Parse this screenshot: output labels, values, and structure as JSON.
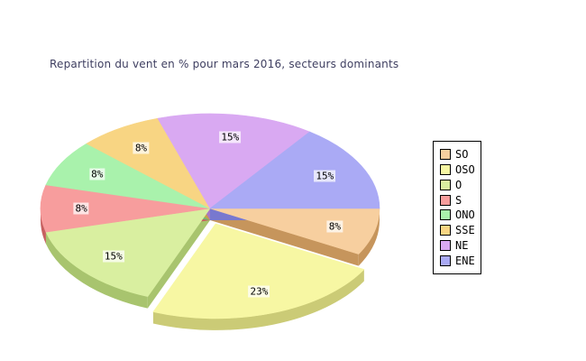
{
  "title": "Repartition du vent en % pour mars 2016, secteurs dominants",
  "chart_data": {
    "type": "pie",
    "style": "3d-exploded",
    "title": "Repartition du vent en % pour mars 2016, secteurs dominants",
    "labels": [
      "SO",
      "OSO",
      "O",
      "S",
      "ONO",
      "SSE",
      "NE",
      "ENE"
    ],
    "values": [
      8,
      23,
      15,
      8,
      8,
      8,
      15,
      15
    ],
    "value_labels": [
      "8%",
      "23%",
      "15%",
      "8%",
      "8%",
      "8%",
      "15%",
      "15%"
    ],
    "colors": [
      "#F7CF9F",
      "#F7F7A3",
      "#D9EFA0",
      "#F79D9D",
      "#A9F2AC",
      "#F8D583",
      "#D9A9F2",
      "#AAAAF5"
    ],
    "side_colors": [
      "#C6955C",
      "#CBCB76",
      "#A8C46E",
      "#C66060",
      "#6FBE75",
      "#C6A14B",
      "#A878C6",
      "#7878CF"
    ],
    "exploded_slice": "OSO",
    "exploded_index": 1,
    "start_angle": 0,
    "direction": "clockwise",
    "legend_position": "right",
    "background_color": "#ffffff",
    "title_color": "#3e3e60"
  },
  "legend": {
    "items": [
      {
        "label": "SO",
        "color": "#F7CF9F"
      },
      {
        "label": "OSO",
        "color": "#F7F7A3"
      },
      {
        "label": "O",
        "color": "#D9EFA0"
      },
      {
        "label": "S",
        "color": "#F79D9D"
      },
      {
        "label": "ONO",
        "color": "#A9F2AC"
      },
      {
        "label": "SSE",
        "color": "#F8D583"
      },
      {
        "label": "NE",
        "color": "#D9A9F2"
      },
      {
        "label": "ENE",
        "color": "#AAAAF5"
      }
    ]
  }
}
